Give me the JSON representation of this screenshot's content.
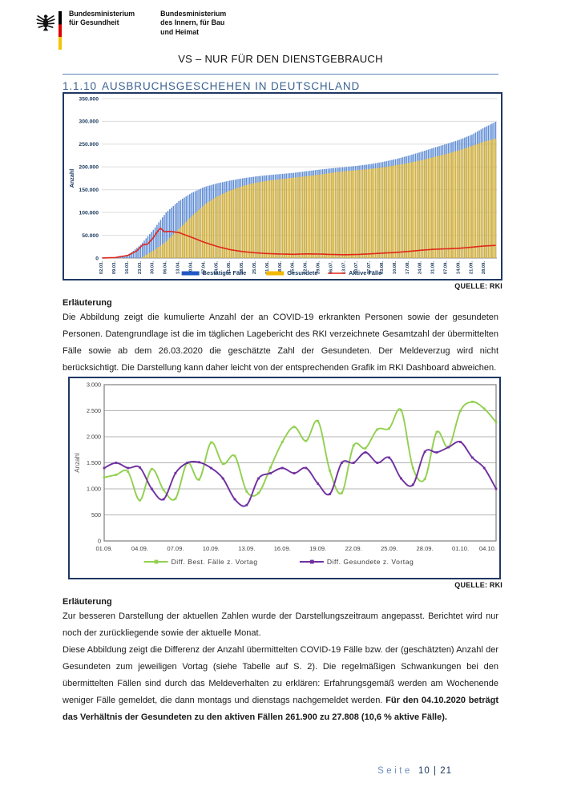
{
  "header": {
    "ministry1": {
      "line1": "Bundesministerium",
      "line2": "für Gesundheit"
    },
    "ministry2": {
      "line1": "Bundesministerium",
      "line2": "des Innern, für Bau",
      "line3": "und Heimat"
    },
    "classification": "VS – NUR FÜR DEN DIENSTGEBRAUCH"
  },
  "section": {
    "number": "1.1.10",
    "title": "AUSBRUCHSGESCHEHEN IN DEUTSCHLAND"
  },
  "source_label_1": "QUELLE: RKI",
  "source_label_2": "QUELLE: RKI",
  "explanation1": {
    "title": "Erläuterung",
    "body": "Die Abbildung zeigt die kumulierte Anzahl der an COVID-19 erkrankten Personen sowie der gesundeten Personen. Datengrundlage ist die im täglichen Lagebericht des RKI verzeichnete Gesamtzahl der übermittelten Fälle sowie ab dem 26.03.2020 die geschätzte Zahl der Gesundeten. Der Meldeverzug wird nicht berücksichtigt. Die Darstellung kann daher leicht von der entsprechenden Grafik im RKI Dashboard abweichen."
  },
  "explanation2": {
    "title": "Erläuterung",
    "para1": "Zur besseren Darstellung der aktuellen Zahlen wurde der Darstellungszeitraum angepasst. Berichtet wird nur noch der zurückliegende sowie der aktuelle Monat.",
    "para2_regular": "Diese Abbildung zeigt die Differenz der Anzahl übermittelten COVID-19 Fälle bzw. der (geschätzten) Anzahl der Gesundeten zum jeweiligen Vortag (siehe Tabelle auf S. 2). Die regelmäßigen Schwankungen bei den übermittelten Fällen sind durch das Meldeverhalten zu erklären: Erfahrungsgemäß werden am Wochenende weniger Fälle gemeldet, die dann montags und dienstags nachgemeldet werden. ",
    "para2_bold": "Für den 04.10.2020 beträgt das Verhältnis der Gesundeten zu den aktiven Fällen 261.900 zu 27.808 (10,6 % aktive Fälle)."
  },
  "footer": {
    "word": "Seite",
    "pages": "10 | 21"
  },
  "chart_data": [
    {
      "type": "bar",
      "title": "",
      "ylabel": "Anzahl",
      "ylim": [
        0,
        350000
      ],
      "ytick_step": 50000,
      "ytick_labels": [
        "0",
        "50.000",
        "100.000",
        "150.000",
        "200.000",
        "250.000",
        "300.000",
        "350.000"
      ],
      "x_tick_labels": [
        "02.03.",
        "09.03.",
        "16.03.",
        "23.03.",
        "30.03.",
        "06.04.",
        "13.04.",
        "20.04.",
        "27.04.",
        "04.05.",
        "11.05.",
        "18.05.",
        "25.05.",
        "01.06.",
        "08.06.",
        "15.06.",
        "22.06.",
        "29.06.",
        "06.07.",
        "13.07.",
        "20.07.",
        "27.07.",
        "03.08.",
        "10.08.",
        "17.08.",
        "24.08.",
        "31.08.",
        "07.09.",
        "14.09.",
        "21.09.",
        "28.09."
      ],
      "x_tick_day_step": 7,
      "total_days": 217,
      "legend": [
        "Bestätigte Fälle",
        "Gesundete",
        "Aktive Fälle"
      ],
      "legend_position": "bottom",
      "grid": true,
      "colors": {
        "bestaetigte_bar": "#5e8cd4",
        "bestaetigte_legend": "#2159c4",
        "gesundete_bar": "#d9b232",
        "gesundete_legend": "#f5b800",
        "aktive_line": "#e0271c"
      },
      "anchor_days": [
        0,
        7,
        14,
        21,
        28,
        35,
        42,
        49,
        56,
        63,
        70,
        77,
        84,
        91,
        98,
        105,
        112,
        119,
        126,
        133,
        140,
        147,
        154,
        161,
        168,
        175,
        182,
        189,
        196,
        203,
        210,
        216
      ],
      "series": [
        {
          "name": "Bestätigte Fälle",
          "values": [
            150,
            1200,
            6000,
            29000,
            62000,
            100000,
            125000,
            143000,
            156000,
            164000,
            170000,
            175000,
            179000,
            182000,
            184500,
            187000,
            190500,
            194000,
            197000,
            199500,
            202500,
            206000,
            211000,
            217000,
            224500,
            233000,
            242000,
            250500,
            259500,
            271000,
            287000,
            299000
          ]
        },
        {
          "name": "Gesundete",
          "values": [
            0,
            0,
            0,
            0,
            16000,
            36000,
            64000,
            91000,
            117000,
            135000,
            148000,
            158000,
            165000,
            170000,
            173000,
            176500,
            179500,
            183000,
            187000,
            190500,
            193000,
            195500,
            199000,
            203500,
            208500,
            214500,
            221500,
            228500,
            236500,
            246000,
            256000,
            261900
          ]
        }
      ],
      "aktive_anchor_days": [
        0,
        7,
        14,
        19,
        22,
        25,
        28,
        31,
        32,
        34,
        37,
        42,
        49,
        56,
        63,
        70,
        77,
        84,
        91,
        98,
        105,
        112,
        119,
        126,
        133,
        140,
        147,
        154,
        161,
        168,
        175,
        182,
        189,
        196,
        203,
        210,
        216
      ],
      "aktive_values": [
        130,
        1100,
        5800,
        16000,
        28500,
        31000,
        45000,
        62000,
        65500,
        57500,
        58500,
        56000,
        45500,
        34500,
        25500,
        18500,
        14200,
        11500,
        9800,
        8800,
        8200,
        9200,
        8800,
        7900,
        7300,
        7900,
        9200,
        10800,
        12200,
        14500,
        17200,
        19200,
        20300,
        21500,
        24000,
        26500,
        27808
      ]
    },
    {
      "type": "line",
      "title": "",
      "ylabel": "Anzahl",
      "ylim": [
        0,
        3000
      ],
      "ytick_step": 500,
      "ytick_labels": [
        "0",
        "500",
        "1.000",
        "1.500",
        "2.000",
        "2.500",
        "3.000"
      ],
      "x": [
        "01.09.",
        "02.09.",
        "03.09.",
        "04.09.",
        "05.09.",
        "06.09.",
        "07.09.",
        "08.09.",
        "09.09.",
        "10.09.",
        "11.09.",
        "12.09.",
        "13.09.",
        "14.09.",
        "15.09.",
        "16.09.",
        "17.09.",
        "18.09.",
        "19.09.",
        "20.09.",
        "21.09.",
        "22.09.",
        "23.09.",
        "24.09.",
        "25.09.",
        "26.09.",
        "27.09.",
        "28.09.",
        "29.09.",
        "30.09.",
        "01.10.",
        "02.10.",
        "03.10.",
        "04.10."
      ],
      "x_tick_labels": [
        "01.09.",
        "04.09.",
        "07.09.",
        "10.09.",
        "13.09.",
        "16.09.",
        "19.09.",
        "22.09.",
        "25.09.",
        "28.09.",
        "01.10.",
        "04.10."
      ],
      "x_tick_index_step": 3,
      "grid": true,
      "legend_position": "bottom",
      "series": [
        {
          "name": "Diff. Best. Fälle z. Vortag",
          "color": "#92d050",
          "values": [
            1220,
            1270,
            1330,
            780,
            1380,
            980,
            810,
            1500,
            1180,
            1890,
            1480,
            1630,
            950,
            920,
            1410,
            1900,
            2190,
            1920,
            2300,
            1350,
            920,
            1830,
            1780,
            2140,
            2160,
            2510,
            1400,
            1190,
            2090,
            1800,
            2500,
            2670,
            2540,
            2280
          ]
        },
        {
          "name": "Diff. Gesundete z. Vortag",
          "color": "#7030a0",
          "values": [
            1400,
            1500,
            1400,
            1410,
            1000,
            800,
            1300,
            1500,
            1510,
            1400,
            1200,
            800,
            690,
            1200,
            1300,
            1400,
            1300,
            1400,
            1100,
            900,
            1500,
            1500,
            1700,
            1500,
            1600,
            1200,
            1080,
            1710,
            1700,
            1800,
            1900,
            1600,
            1400,
            1000
          ]
        }
      ]
    }
  ]
}
